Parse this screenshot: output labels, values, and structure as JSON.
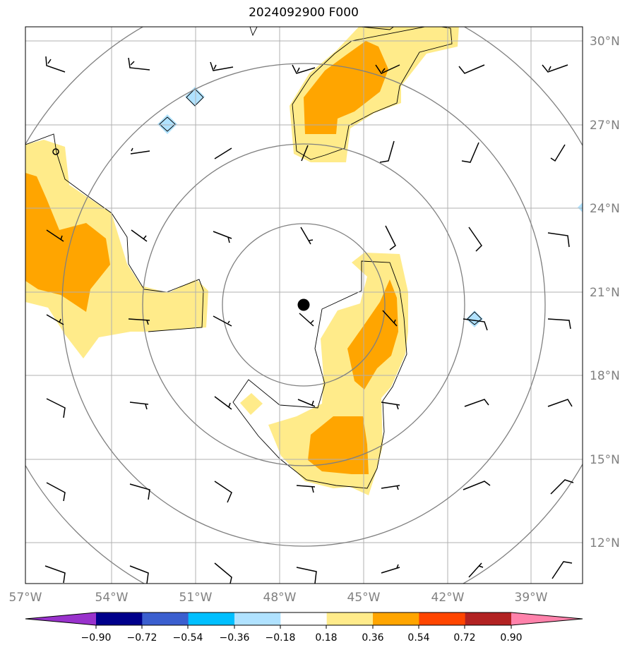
{
  "title": "2024092900 F000",
  "axes": {
    "x_ticks": [
      {
        "value": -57,
        "label": "57°W"
      },
      {
        "value": -54,
        "label": "54°W"
      },
      {
        "value": -51,
        "label": "51°W"
      },
      {
        "value": -48,
        "label": "48°W"
      },
      {
        "value": -45,
        "label": "45°W"
      },
      {
        "value": -42,
        "label": "42°W"
      },
      {
        "value": -39,
        "label": "39°W"
      }
    ],
    "y_ticks": [
      {
        "value": 30,
        "label": "30°N"
      },
      {
        "value": 27,
        "label": "27°N"
      },
      {
        "value": 24,
        "label": "24°N"
      },
      {
        "value": 21,
        "label": "21°N"
      },
      {
        "value": 18,
        "label": "18°N"
      },
      {
        "value": 15,
        "label": "15°N"
      },
      {
        "value": 12,
        "label": "12°N"
      }
    ],
    "lon_range": [
      -57,
      -37.1
    ],
    "lat_range": [
      10.6,
      30.5
    ],
    "grid": true
  },
  "colorbar": {
    "labels": [
      "−0.90",
      "−0.72",
      "−0.54",
      "−0.36",
      "−0.18",
      "0.18",
      "0.36",
      "0.54",
      "0.72",
      "0.90"
    ],
    "colors": [
      "#9932cc",
      "#00008b",
      "#3b5fcf",
      "#00bfff",
      "#b0e2ff",
      "#ffffff",
      "#ffeb8a",
      "#ffa500",
      "#ff4500",
      "#b22222",
      "#ff82ab"
    ]
  },
  "center_marker": {
    "lon": -46.2,
    "lat": 20.5
  }
}
